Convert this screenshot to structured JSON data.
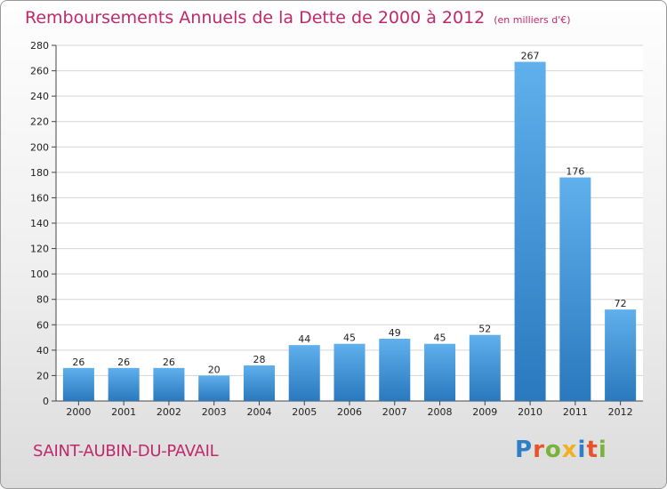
{
  "title": "Remboursements Annuels de la Dette de 2000 à 2012",
  "unit": "(en milliers d'€)",
  "town": "SAINT-AUBIN-DU-PAVAIL",
  "logo": {
    "text": "Proxiti",
    "letters": [
      {
        "ch": "P",
        "color": "#2e7ec8"
      },
      {
        "ch": "r",
        "color": "#e8542a"
      },
      {
        "ch": "o",
        "color": "#7ab33a"
      },
      {
        "ch": "x",
        "color": "#f0b020"
      },
      {
        "ch": "i",
        "color": "#2e7ec8"
      },
      {
        "ch": "t",
        "color": "#e8542a"
      },
      {
        "ch": "i",
        "color": "#7ab33a"
      }
    ]
  },
  "colors": {
    "bar_top": "#5fb0ec",
    "bar_bottom": "#2a78be",
    "title": "#c0286c",
    "grid": "#d6d6d6"
  },
  "chart_data": {
    "type": "bar",
    "title": "Remboursements Annuels de la Dette de 2000 à 2012",
    "subtitle": "(en milliers d'€)",
    "xlabel": "",
    "ylabel": "",
    "categories": [
      "2000",
      "2001",
      "2002",
      "2003",
      "2004",
      "2005",
      "2006",
      "2007",
      "2008",
      "2009",
      "2010",
      "2011",
      "2012"
    ],
    "values": [
      26,
      26,
      26,
      20,
      28,
      44,
      45,
      49,
      45,
      52,
      267,
      176,
      72
    ],
    "ylim": [
      0,
      280
    ],
    "yticks": [
      0,
      20,
      40,
      60,
      80,
      100,
      120,
      140,
      160,
      180,
      200,
      220,
      240,
      260,
      280
    ],
    "grid": true,
    "legend": "none"
  }
}
